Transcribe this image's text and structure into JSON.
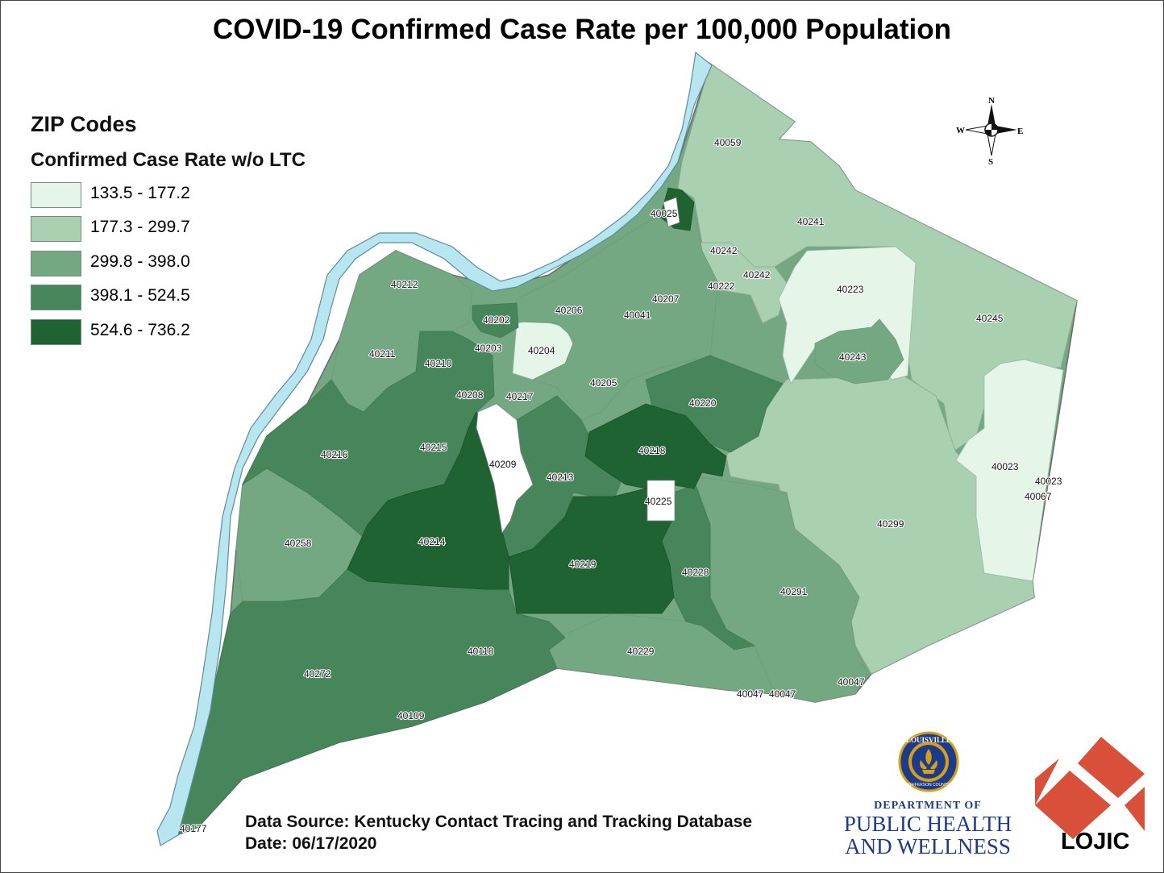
{
  "title": "COVID-19 Confirmed Case Rate per 100,000 Population",
  "legend": {
    "title": "ZIP Codes",
    "subtitle": "Confirmed Case Rate w/o LTC",
    "classes": [
      {
        "label": "133.5 - 177.2",
        "color": "#e5f5e8"
      },
      {
        "label": "177.3 - 299.7",
        "color": "#a9d0b1"
      },
      {
        "label": "299.8 - 398.0",
        "color": "#74a882"
      },
      {
        "label": "398.1 - 524.5",
        "color": "#46865a"
      },
      {
        "label": "524.6 - 736.2",
        "color": "#1f6332"
      }
    ]
  },
  "no_data_color": "#ffffff",
  "river_color": "#b8e6f0",
  "compass": {
    "n": "N",
    "s": "S",
    "e": "E",
    "w": "W"
  },
  "zip_labels": [
    {
      "zip": "40059",
      "class": 1
    },
    {
      "zip": "40025",
      "class": 4
    },
    {
      "zip": "40241",
      "class": 1
    },
    {
      "zip": "40242",
      "class": 1
    },
    {
      "zip": "40242",
      "class": 1
    },
    {
      "zip": "40222",
      "class": 2
    },
    {
      "zip": "40223",
      "class": 0
    },
    {
      "zip": "40245",
      "class": 1
    },
    {
      "zip": "40212",
      "class": 2
    },
    {
      "zip": "40206",
      "class": 2
    },
    {
      "zip": "40207",
      "class": 2
    },
    {
      "zip": "40041",
      "class": 2
    },
    {
      "zip": "40202",
      "class": 3
    },
    {
      "zip": "40243",
      "class": 2
    },
    {
      "zip": "40211",
      "class": 2
    },
    {
      "zip": "40203",
      "class": 2
    },
    {
      "zip": "40204",
      "class": 0
    },
    {
      "zip": "40210",
      "class": 3
    },
    {
      "zip": "40205",
      "class": 2
    },
    {
      "zip": "40208",
      "class": 3
    },
    {
      "zip": "40217",
      "class": 2
    },
    {
      "zip": "40220",
      "class": 3
    },
    {
      "zip": "40216",
      "class": 3
    },
    {
      "zip": "40215",
      "class": 3
    },
    {
      "zip": "40209",
      "class": 5
    },
    {
      "zip": "40218",
      "class": 4
    },
    {
      "zip": "40213",
      "class": 3
    },
    {
      "zip": "40225",
      "class": 5
    },
    {
      "zip": "40023",
      "class": 0
    },
    {
      "zip": "40023",
      "class": 0
    },
    {
      "zip": "40067",
      "class": 0
    },
    {
      "zip": "40299",
      "class": 1
    },
    {
      "zip": "40258",
      "class": 2
    },
    {
      "zip": "40214",
      "class": 4
    },
    {
      "zip": "40219",
      "class": 4
    },
    {
      "zip": "40228",
      "class": 3
    },
    {
      "zip": "40291",
      "class": 2
    },
    {
      "zip": "40118",
      "class": 3
    },
    {
      "zip": "40229",
      "class": 2
    },
    {
      "zip": "40272",
      "class": 3
    },
    {
      "zip": "40047",
      "class": 2
    },
    {
      "zip": "40047",
      "class": 2
    },
    {
      "zip": "40047",
      "class": 2
    },
    {
      "zip": "40109",
      "class": 3
    },
    {
      "zip": "40177",
      "class": 3
    }
  ],
  "footer": {
    "source": "Data Source: Kentucky Contact Tracing and Tracking Database",
    "date": "Date: 06/17/2020"
  },
  "logos": {
    "seal_text": "LOUISVILLE",
    "seal_subtext": "JEFFERSON COUNTY",
    "dept_line1": "DEPARTMENT OF",
    "dept_line2": "PUBLIC HEALTH",
    "dept_line3": "AND WELLNESS",
    "lojic": "LOJIC",
    "lojic_color": "#d9503a"
  }
}
